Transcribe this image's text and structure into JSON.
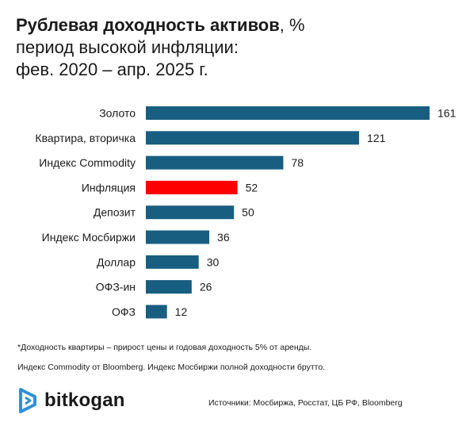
{
  "header": {
    "title_bold": "Рублевая доходность активов",
    "title_rest": ", %",
    "subtitle_line1": "период высокой инфляции:",
    "subtitle_line2": "фев. 2020 – апр. 2025 г."
  },
  "chart_data": {
    "type": "bar",
    "orientation": "horizontal",
    "categories": [
      "Золото",
      "Квартира, вторичка",
      "Индекс Commodity",
      "Инфляция",
      "Депозит",
      "Индекс Мосбиржи",
      "Доллар",
      "ОФЗ-ин",
      "ОФЗ"
    ],
    "values": [
      161,
      121,
      78,
      52,
      50,
      36,
      30,
      26,
      12
    ],
    "colors": [
      "#175e81",
      "#175e81",
      "#175e81",
      "#ff0000",
      "#175e81",
      "#175e81",
      "#175e81",
      "#175e81",
      "#175e81"
    ],
    "data_labels": true,
    "grid": false,
    "legend": "none"
  },
  "footnotes": {
    "line1": "*Доходность квартиры – прирост цены и годовая доходность 5% от аренды.",
    "line2": "Индекс Commodity от Bloomberg. Индекс Мосбиржи полной доходности брутто."
  },
  "brand": {
    "name": "bitkogan",
    "logo_color": "#2f8fd8",
    "icon": "bitkogan-logo-icon"
  },
  "sources": "Источники: Мосбиржа, Росстат, ЦБ РФ, Bloomberg"
}
